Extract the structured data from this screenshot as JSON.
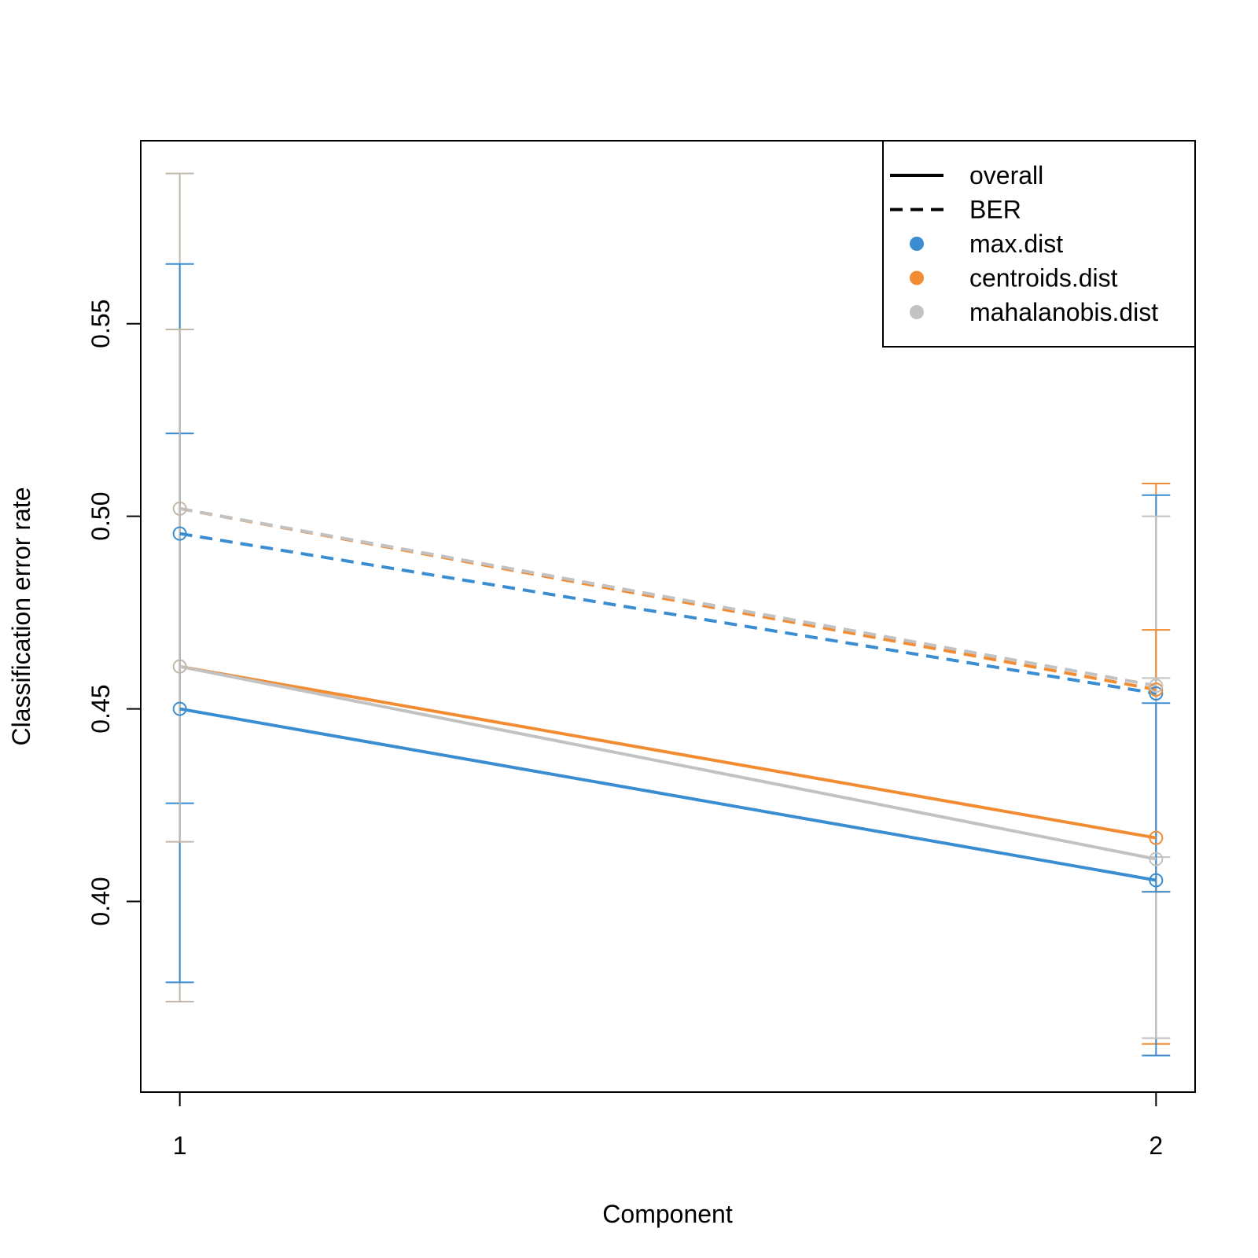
{
  "chart_data": {
    "type": "line",
    "title": "",
    "xlabel": "Component",
    "ylabel": "Classification error rate",
    "x": [
      1,
      2
    ],
    "xlim": [
      0.96,
      2.04
    ],
    "ylim": [
      0.3505,
      0.5975
    ],
    "yticks": [
      0.4,
      0.45,
      0.5,
      0.55
    ],
    "ytick_labels": [
      "0.40",
      "0.45",
      "0.50",
      "0.55"
    ],
    "xticks": [
      1,
      2
    ],
    "xtick_labels": [
      "1",
      "2"
    ],
    "grid": false,
    "legend_position": "top-right",
    "legend": [
      {
        "label": "overall",
        "kind": "solid-line"
      },
      {
        "label": "BER",
        "kind": "dashed-line"
      },
      {
        "label": "max.dist",
        "kind": "dot",
        "color": "#3a8dd0"
      },
      {
        "label": "centroids.dist",
        "kind": "dot",
        "color": "#f28c33"
      },
      {
        "label": "mahalanobis.dist",
        "kind": "dot",
        "color": "#c2c2c2"
      }
    ],
    "series": [
      {
        "name": "max.dist",
        "measure": "overall",
        "dash": false,
        "color": "#3a8dd0",
        "values": [
          0.45,
          0.4055
        ]
      },
      {
        "name": "centroids.dist",
        "measure": "overall",
        "dash": false,
        "color": "#f28c33",
        "values": [
          0.461,
          0.4165
        ]
      },
      {
        "name": "mahalanobis.dist",
        "measure": "overall",
        "dash": false,
        "color": "#c2c2c2",
        "values": [
          0.461,
          0.411
        ]
      },
      {
        "name": "max.dist",
        "measure": "BER",
        "dash": true,
        "color": "#3a8dd0",
        "values": [
          0.4955,
          0.454
        ]
      },
      {
        "name": "centroids.dist",
        "measure": "BER",
        "dash": true,
        "color": "#f28c33",
        "values": [
          0.502,
          0.455
        ]
      },
      {
        "name": "mahalanobis.dist",
        "measure": "BER",
        "dash": true,
        "color": "#c2c2c2",
        "values": [
          0.502,
          0.456
        ]
      }
    ],
    "error_bars": [
      {
        "x": 1,
        "color": "#c2b8aa",
        "low": 0.374,
        "high": 0.589
      },
      {
        "x": 1,
        "color": "#3a8dd0",
        "low": 0.4255,
        "high": 0.5655
      },
      {
        "x": 1,
        "color": "#3a8dd0",
        "low": 0.379,
        "high": 0.5215
      },
      {
        "x": 1,
        "color": "#c2b8aa",
        "low": 0.4155,
        "high": 0.5485
      },
      {
        "x": 2,
        "color": "#f28c33",
        "low": 0.363,
        "high": 0.5085
      },
      {
        "x": 2,
        "color": "#3a8dd0",
        "low": 0.36,
        "high": 0.5055
      },
      {
        "x": 2,
        "color": "#c2c2c2",
        "low": 0.3645,
        "high": 0.5
      },
      {
        "x": 2,
        "color": "#f28c33",
        "low": 0.4025,
        "high": 0.4705
      },
      {
        "x": 2,
        "color": "#c2c2c2",
        "low": 0.4115,
        "high": 0.458
      },
      {
        "x": 2,
        "color": "#3a8dd0",
        "low": 0.4025,
        "high": 0.4515
      }
    ],
    "markers": [
      {
        "x": 1,
        "y": 0.45,
        "color": "#3a8dd0"
      },
      {
        "x": 1,
        "y": 0.4955,
        "color": "#3a8dd0"
      },
      {
        "x": 1,
        "y": 0.461,
        "color": "#c2b8aa"
      },
      {
        "x": 1,
        "y": 0.502,
        "color": "#c2b8aa"
      },
      {
        "x": 2,
        "y": 0.4055,
        "color": "#3a8dd0"
      },
      {
        "x": 2,
        "y": 0.4165,
        "color": "#f28c33"
      },
      {
        "x": 2,
        "y": 0.411,
        "color": "#c2c2c2"
      },
      {
        "x": 2,
        "y": 0.454,
        "color": "#3a8dd0"
      },
      {
        "x": 2,
        "y": 0.455,
        "color": "#f28c33"
      },
      {
        "x": 2,
        "y": 0.456,
        "color": "#c2c2c2"
      }
    ]
  }
}
